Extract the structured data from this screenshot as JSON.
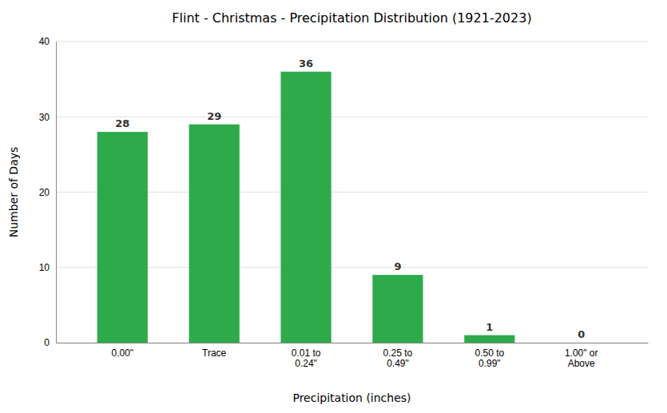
{
  "chart_data": {
    "type": "bar",
    "title": "Flint - Christmas - Precipitation Distribution (1921-2023)",
    "xlabel": "Precipitation (inches)",
    "ylabel": "Number of Days",
    "categories": [
      "0.00\"",
      "Trace",
      "0.01 to\n0.24\"",
      "0.25 to\n0.49\"",
      "0.50 to\n0.99\"",
      "1.00\" or\nAbove"
    ],
    "values": [
      28,
      29,
      36,
      9,
      1,
      0
    ],
    "color": "#2eaa4a",
    "ylim": [
      0,
      40
    ],
    "yticks": [
      0,
      10,
      20,
      30,
      40
    ],
    "grid": true,
    "data_labels": true
  }
}
